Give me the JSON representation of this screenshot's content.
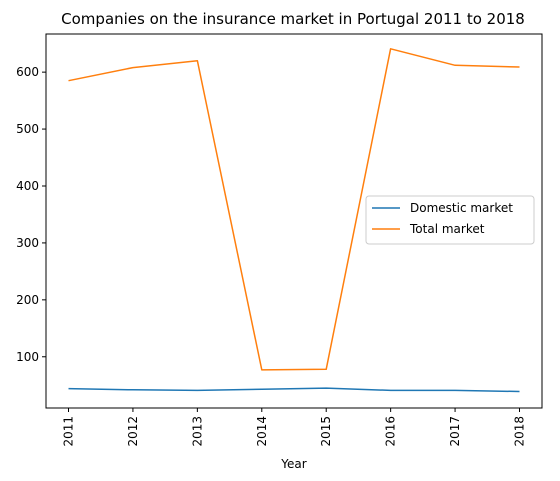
{
  "chart_data": {
    "type": "line",
    "title": "Companies on the insurance market in Portugal 2011 to 2018",
    "xlabel": "Year",
    "ylabel": "",
    "categories": [
      "2011",
      "2012",
      "2013",
      "2014",
      "2015",
      "2016",
      "2017",
      "2018"
    ],
    "yticks": [
      100,
      200,
      300,
      400,
      500,
      600
    ],
    "ylim": [
      10,
      667
    ],
    "grid": false,
    "legend_position": "center-right",
    "series": [
      {
        "name": "Domestic market",
        "color": "#1f77b4",
        "values": [
          44,
          42,
          41,
          43,
          45,
          41,
          41,
          39
        ]
      },
      {
        "name": "Total market",
        "color": "#ff7f0e",
        "values": [
          585,
          608,
          620,
          77,
          78,
          641,
          612,
          609
        ]
      }
    ]
  }
}
